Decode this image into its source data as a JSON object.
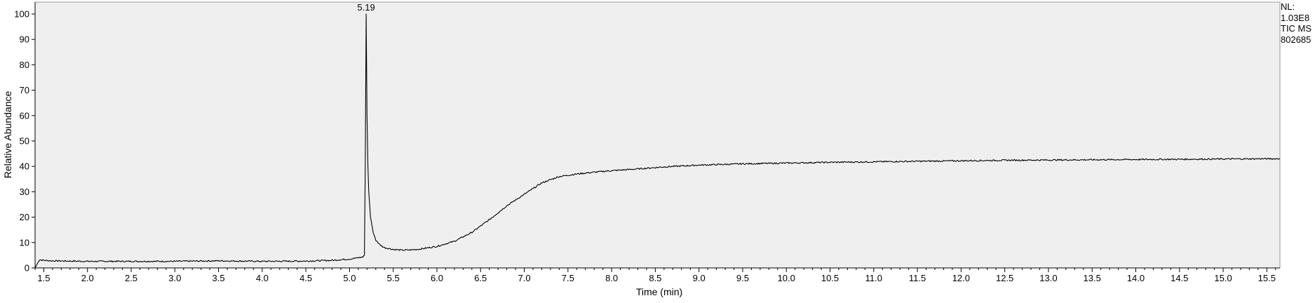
{
  "chart_data": {
    "type": "line",
    "title": "",
    "xlabel": "Time (min)",
    "ylabel": "Relative Abundance",
    "xlim": [
      1.4,
      15.65
    ],
    "ylim": [
      0,
      100
    ],
    "grid": false,
    "x_ticks": [
      "1.5",
      "2.0",
      "2.5",
      "3.0",
      "3.5",
      "4.0",
      "4.5",
      "5.0",
      "5.5",
      "6.0",
      "6.5",
      "7.0",
      "7.5",
      "8.0",
      "8.5",
      "9.0",
      "9.5",
      "10.0",
      "10.5",
      "11.0",
      "11.5",
      "12.0",
      "12.5",
      "13.0",
      "13.5",
      "14.0",
      "14.5",
      "15.0",
      "15.5"
    ],
    "y_ticks": [
      "0",
      "10",
      "20",
      "30",
      "40",
      "50",
      "60",
      "70",
      "80",
      "90",
      "100"
    ],
    "annotations": [
      {
        "x": 5.19,
        "y": 100,
        "text": "5.19"
      }
    ],
    "side_labels": [
      "NL:",
      "1.03E8",
      "TIC  MS",
      "802685"
    ],
    "series": [
      {
        "color": "#000000",
        "x": [
          1.4,
          1.43,
          1.45,
          1.5,
          1.6,
          1.8,
          2.0,
          2.5,
          3.0,
          3.5,
          4.0,
          4.5,
          4.8,
          5.0,
          5.1,
          5.15,
          5.17,
          5.18,
          5.19,
          5.2,
          5.21,
          5.22,
          5.24,
          5.27,
          5.3,
          5.35,
          5.4,
          5.5,
          5.6,
          5.7,
          5.8,
          6.0,
          6.2,
          6.4,
          6.6,
          6.8,
          7.0,
          7.2,
          7.4,
          7.6,
          7.8,
          8.0,
          8.3,
          8.6,
          9.0,
          9.5,
          10.0,
          10.5,
          11.0,
          11.5,
          12.0,
          12.5,
          13.0,
          13.5,
          14.0,
          14.5,
          15.0,
          15.5,
          15.65
        ],
        "y": [
          0,
          2,
          3.2,
          3.0,
          2.8,
          2.7,
          2.6,
          2.6,
          2.6,
          2.8,
          2.6,
          2.7,
          3.0,
          3.5,
          4.0,
          4.3,
          5.0,
          40,
          100,
          60,
          40,
          30,
          20,
          14,
          11,
          9,
          8,
          7.3,
          7.0,
          7.1,
          7.4,
          8.5,
          10.5,
          14,
          19,
          24.5,
          29,
          33.5,
          36,
          37,
          37.7,
          38.3,
          39,
          39.8,
          40.5,
          41,
          41.3,
          41.6,
          41.8,
          42,
          42.2,
          42.4,
          42.5,
          42.6,
          42.7,
          42.8,
          42.9,
          43.0,
          43.0
        ]
      }
    ]
  }
}
